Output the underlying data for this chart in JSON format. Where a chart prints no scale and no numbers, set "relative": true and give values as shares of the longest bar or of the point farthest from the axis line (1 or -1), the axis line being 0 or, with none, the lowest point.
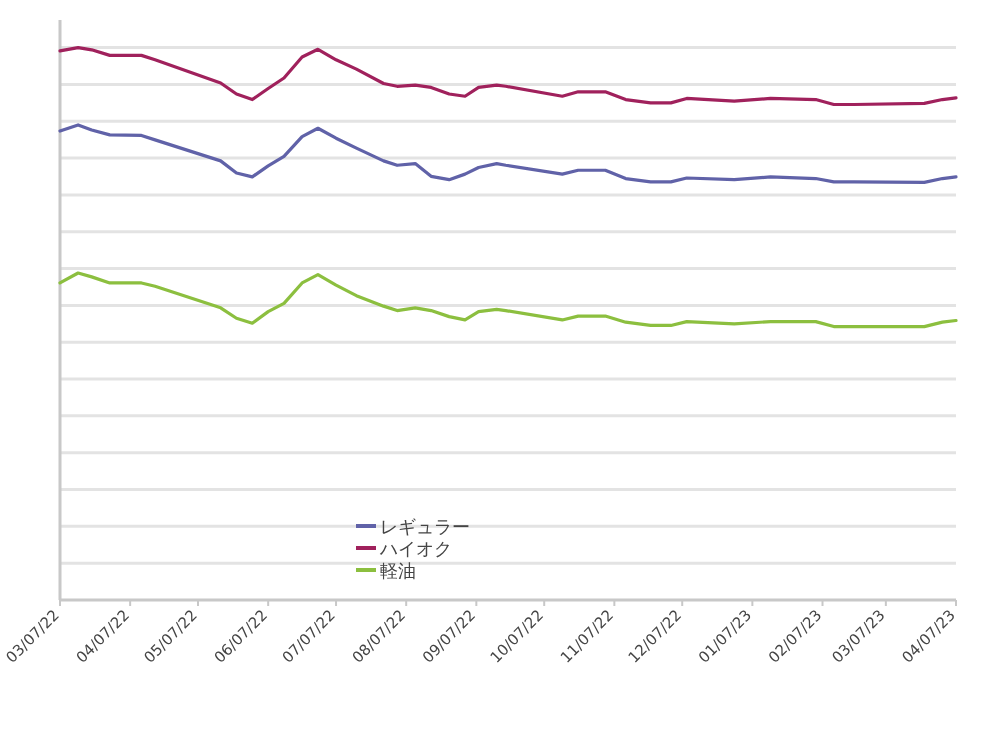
{
  "chart_data": {
    "type": "line",
    "relative": true,
    "grid": "y",
    "legend": "bottom",
    "marker": "none",
    "line_style": "solid",
    "x": [
      "2022-03-07",
      "2022-03-15",
      "2022-03-21",
      "2022-03-29",
      "2022-04-12",
      "2022-04-18",
      "2022-05-17",
      "2022-05-24",
      "2022-05-31",
      "2022-06-07",
      "2022-06-14",
      "2022-06-22",
      "2022-06-29",
      "2022-07-07",
      "2022-07-16",
      "2022-07-28",
      "2022-08-03",
      "2022-08-11",
      "2022-08-18",
      "2022-08-26",
      "2022-09-02",
      "2022-09-08",
      "2022-09-16",
      "2022-09-20",
      "2022-10-15",
      "2022-10-22",
      "2022-11-03",
      "2022-11-12",
      "2022-11-23",
      "2022-12-02",
      "2022-12-09",
      "2022-12-30",
      "2023-01-15",
      "2023-02-04",
      "2023-02-12",
      "2023-02-21",
      "2023-03-24",
      "2023-04-01",
      "2023-04-07"
    ],
    "xlim": [
      "2022-03-07",
      "2023-04-07"
    ],
    "xticks": [
      {
        "value": "2022-03-07",
        "label": "03/07/22"
      },
      {
        "value": "2022-04-07",
        "label": "04/07/22"
      },
      {
        "value": "2022-05-07",
        "label": "05/07/22"
      },
      {
        "value": "2022-06-07",
        "label": "06/07/22"
      },
      {
        "value": "2022-07-07",
        "label": "07/07/22"
      },
      {
        "value": "2022-08-07",
        "label": "08/07/22"
      },
      {
        "value": "2022-09-07",
        "label": "09/07/22"
      },
      {
        "value": "2022-10-07",
        "label": "10/07/22"
      },
      {
        "value": "2022-11-07",
        "label": "11/07/22"
      },
      {
        "value": "2022-12-07",
        "label": "12/07/22"
      },
      {
        "value": "2023-01-07",
        "label": "01/07/23"
      },
      {
        "value": "2023-02-07",
        "label": "02/07/23"
      },
      {
        "value": "2023-03-07",
        "label": "03/07/23"
      },
      {
        "value": "2023-04-07",
        "label": "04/07/23"
      }
    ],
    "series": [
      {
        "name": "レギュラー",
        "color": "#6062a8",
        "values": [
          0.849,
          0.86,
          0.851,
          0.842,
          0.841,
          0.833,
          0.795,
          0.773,
          0.766,
          0.786,
          0.803,
          0.839,
          0.854,
          0.836,
          0.818,
          0.795,
          0.787,
          0.79,
          0.767,
          0.761,
          0.771,
          0.783,
          0.79,
          0.787,
          0.771,
          0.778,
          0.778,
          0.763,
          0.757,
          0.757,
          0.764,
          0.761,
          0.766,
          0.763,
          0.757,
          0.757,
          0.756,
          0.763,
          0.766
        ]
      },
      {
        "name": "ハイオク",
        "color": "#a0215c",
        "values": [
          0.994,
          1.0,
          0.996,
          0.986,
          0.986,
          0.978,
          0.936,
          0.916,
          0.906,
          0.926,
          0.945,
          0.983,
          0.997,
          0.978,
          0.961,
          0.935,
          0.93,
          0.932,
          0.928,
          0.916,
          0.912,
          0.928,
          0.932,
          0.93,
          0.912,
          0.92,
          0.92,
          0.906,
          0.9,
          0.9,
          0.908,
          0.903,
          0.908,
          0.906,
          0.897,
          0.897,
          0.899,
          0.906,
          0.909
        ]
      },
      {
        "name": "軽油",
        "color": "#8cbf3f",
        "values": [
          0.574,
          0.592,
          0.585,
          0.574,
          0.574,
          0.568,
          0.529,
          0.51,
          0.501,
          0.522,
          0.537,
          0.574,
          0.589,
          0.57,
          0.551,
          0.532,
          0.524,
          0.529,
          0.524,
          0.513,
          0.507,
          0.522,
          0.526,
          0.524,
          0.507,
          0.514,
          0.514,
          0.503,
          0.497,
          0.497,
          0.504,
          0.5,
          0.504,
          0.504,
          0.495,
          0.495,
          0.495,
          0.503,
          0.506
        ]
      }
    ]
  }
}
